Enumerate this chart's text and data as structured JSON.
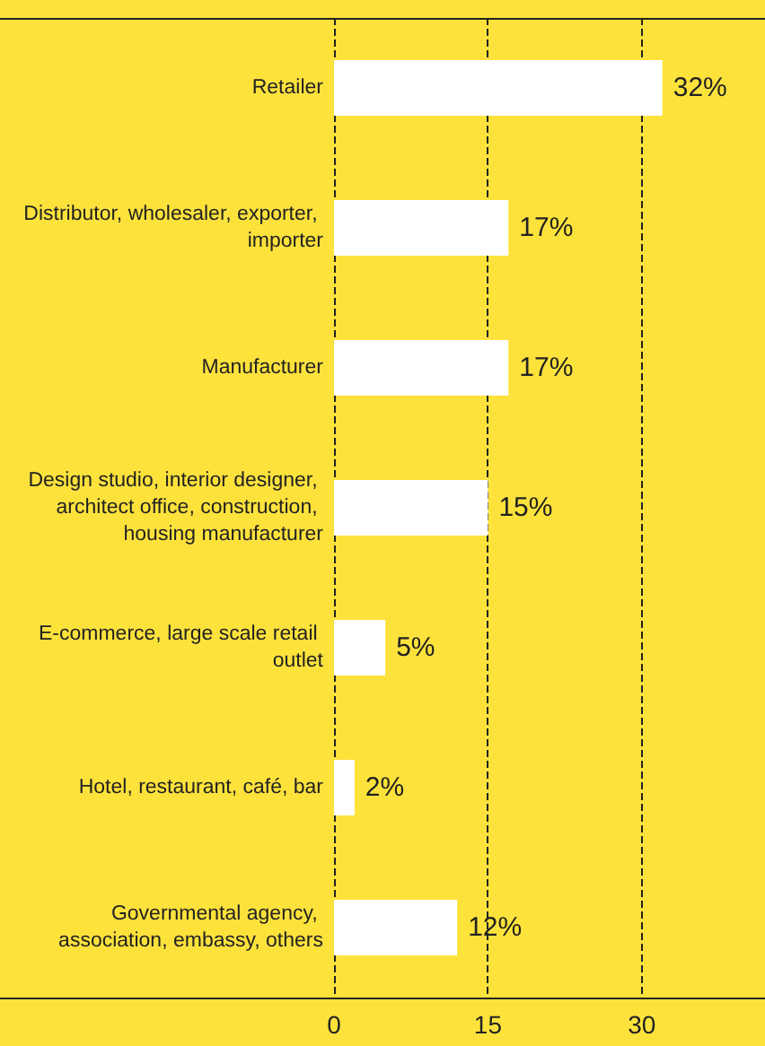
{
  "chart_data": {
    "type": "bar",
    "orientation": "horizontal",
    "categories": [
      "Retailer",
      "Distributor, wholesaler, exporter, importer",
      "Manufacturer",
      "Design studio, interior designer, architect office, construction, housing manufacturer",
      "E-commerce, large scale retail outlet",
      "Hotel, restaurant, café, bar",
      "Governmental agency, association, embassy, others"
    ],
    "values": [
      32,
      17,
      17,
      15,
      5,
      2,
      12
    ],
    "value_labels": [
      "32%",
      "17%",
      "17%",
      "15%",
      "5%",
      "2%",
      "12%"
    ],
    "colors": [
      "#ffffff",
      "#ffffff",
      "#ffffff",
      "#ffffff",
      "#ffffff",
      "#ffffff",
      "#ffffff"
    ],
    "xlim": [
      0,
      42
    ],
    "xticks": [
      0,
      15,
      30
    ],
    "grid": "x"
  }
}
